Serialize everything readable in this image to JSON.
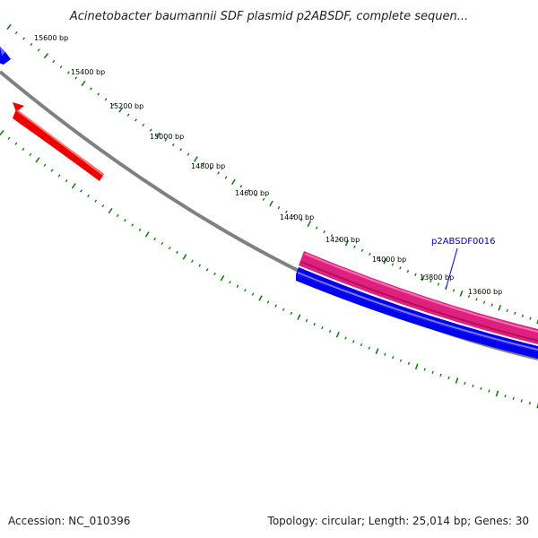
{
  "title": "Acinetobacter baumannii SDF plasmid p2ABSDF, complete sequen...",
  "accession": "Accession: NC_010396",
  "summary": "Topology: circular; Length: 25,014 bp; Genes: 30",
  "scale_labels": [
    "15600 bp",
    "15400 bp",
    "15200 bp",
    "15000 bp",
    "14800 bp",
    "14600 bp",
    "14400 bp",
    "14200 bp",
    "14000 bp",
    "13800 bp",
    "13600 bp"
  ],
  "gene_label": "p2ABSDF0016",
  "colors": {
    "backbone": "#808080",
    "tick": "#1a7a1a",
    "forward_gene": "#0000ee",
    "reverse_gene": "#ee0000",
    "highlight_gene": "#e0207f",
    "gene_label": "#0000c8"
  }
}
